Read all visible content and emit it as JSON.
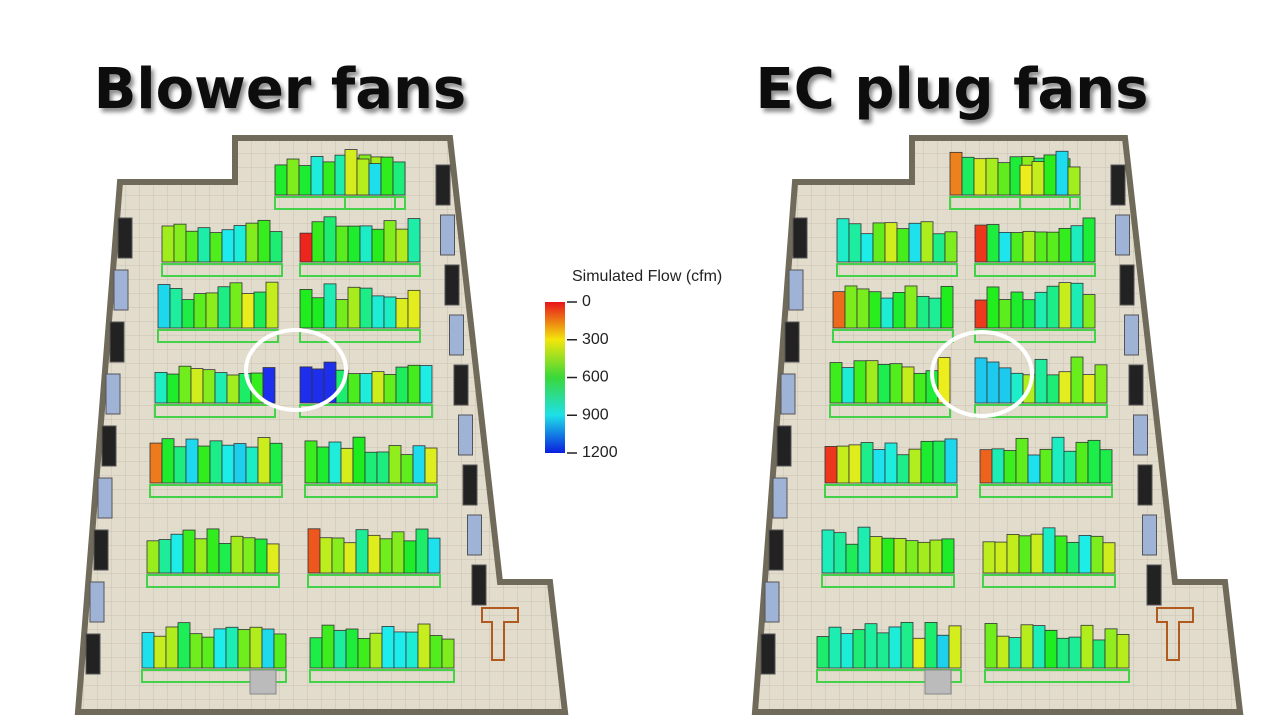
{
  "panels": [
    {
      "title": "Blower fans"
    },
    {
      "title": "EC plug fans"
    }
  ],
  "colorbar": {
    "title": "Simulated Flow (cfm)",
    "range": [
      0,
      1200
    ],
    "ticks": [
      0,
      300,
      600,
      900,
      1200
    ]
  }
}
